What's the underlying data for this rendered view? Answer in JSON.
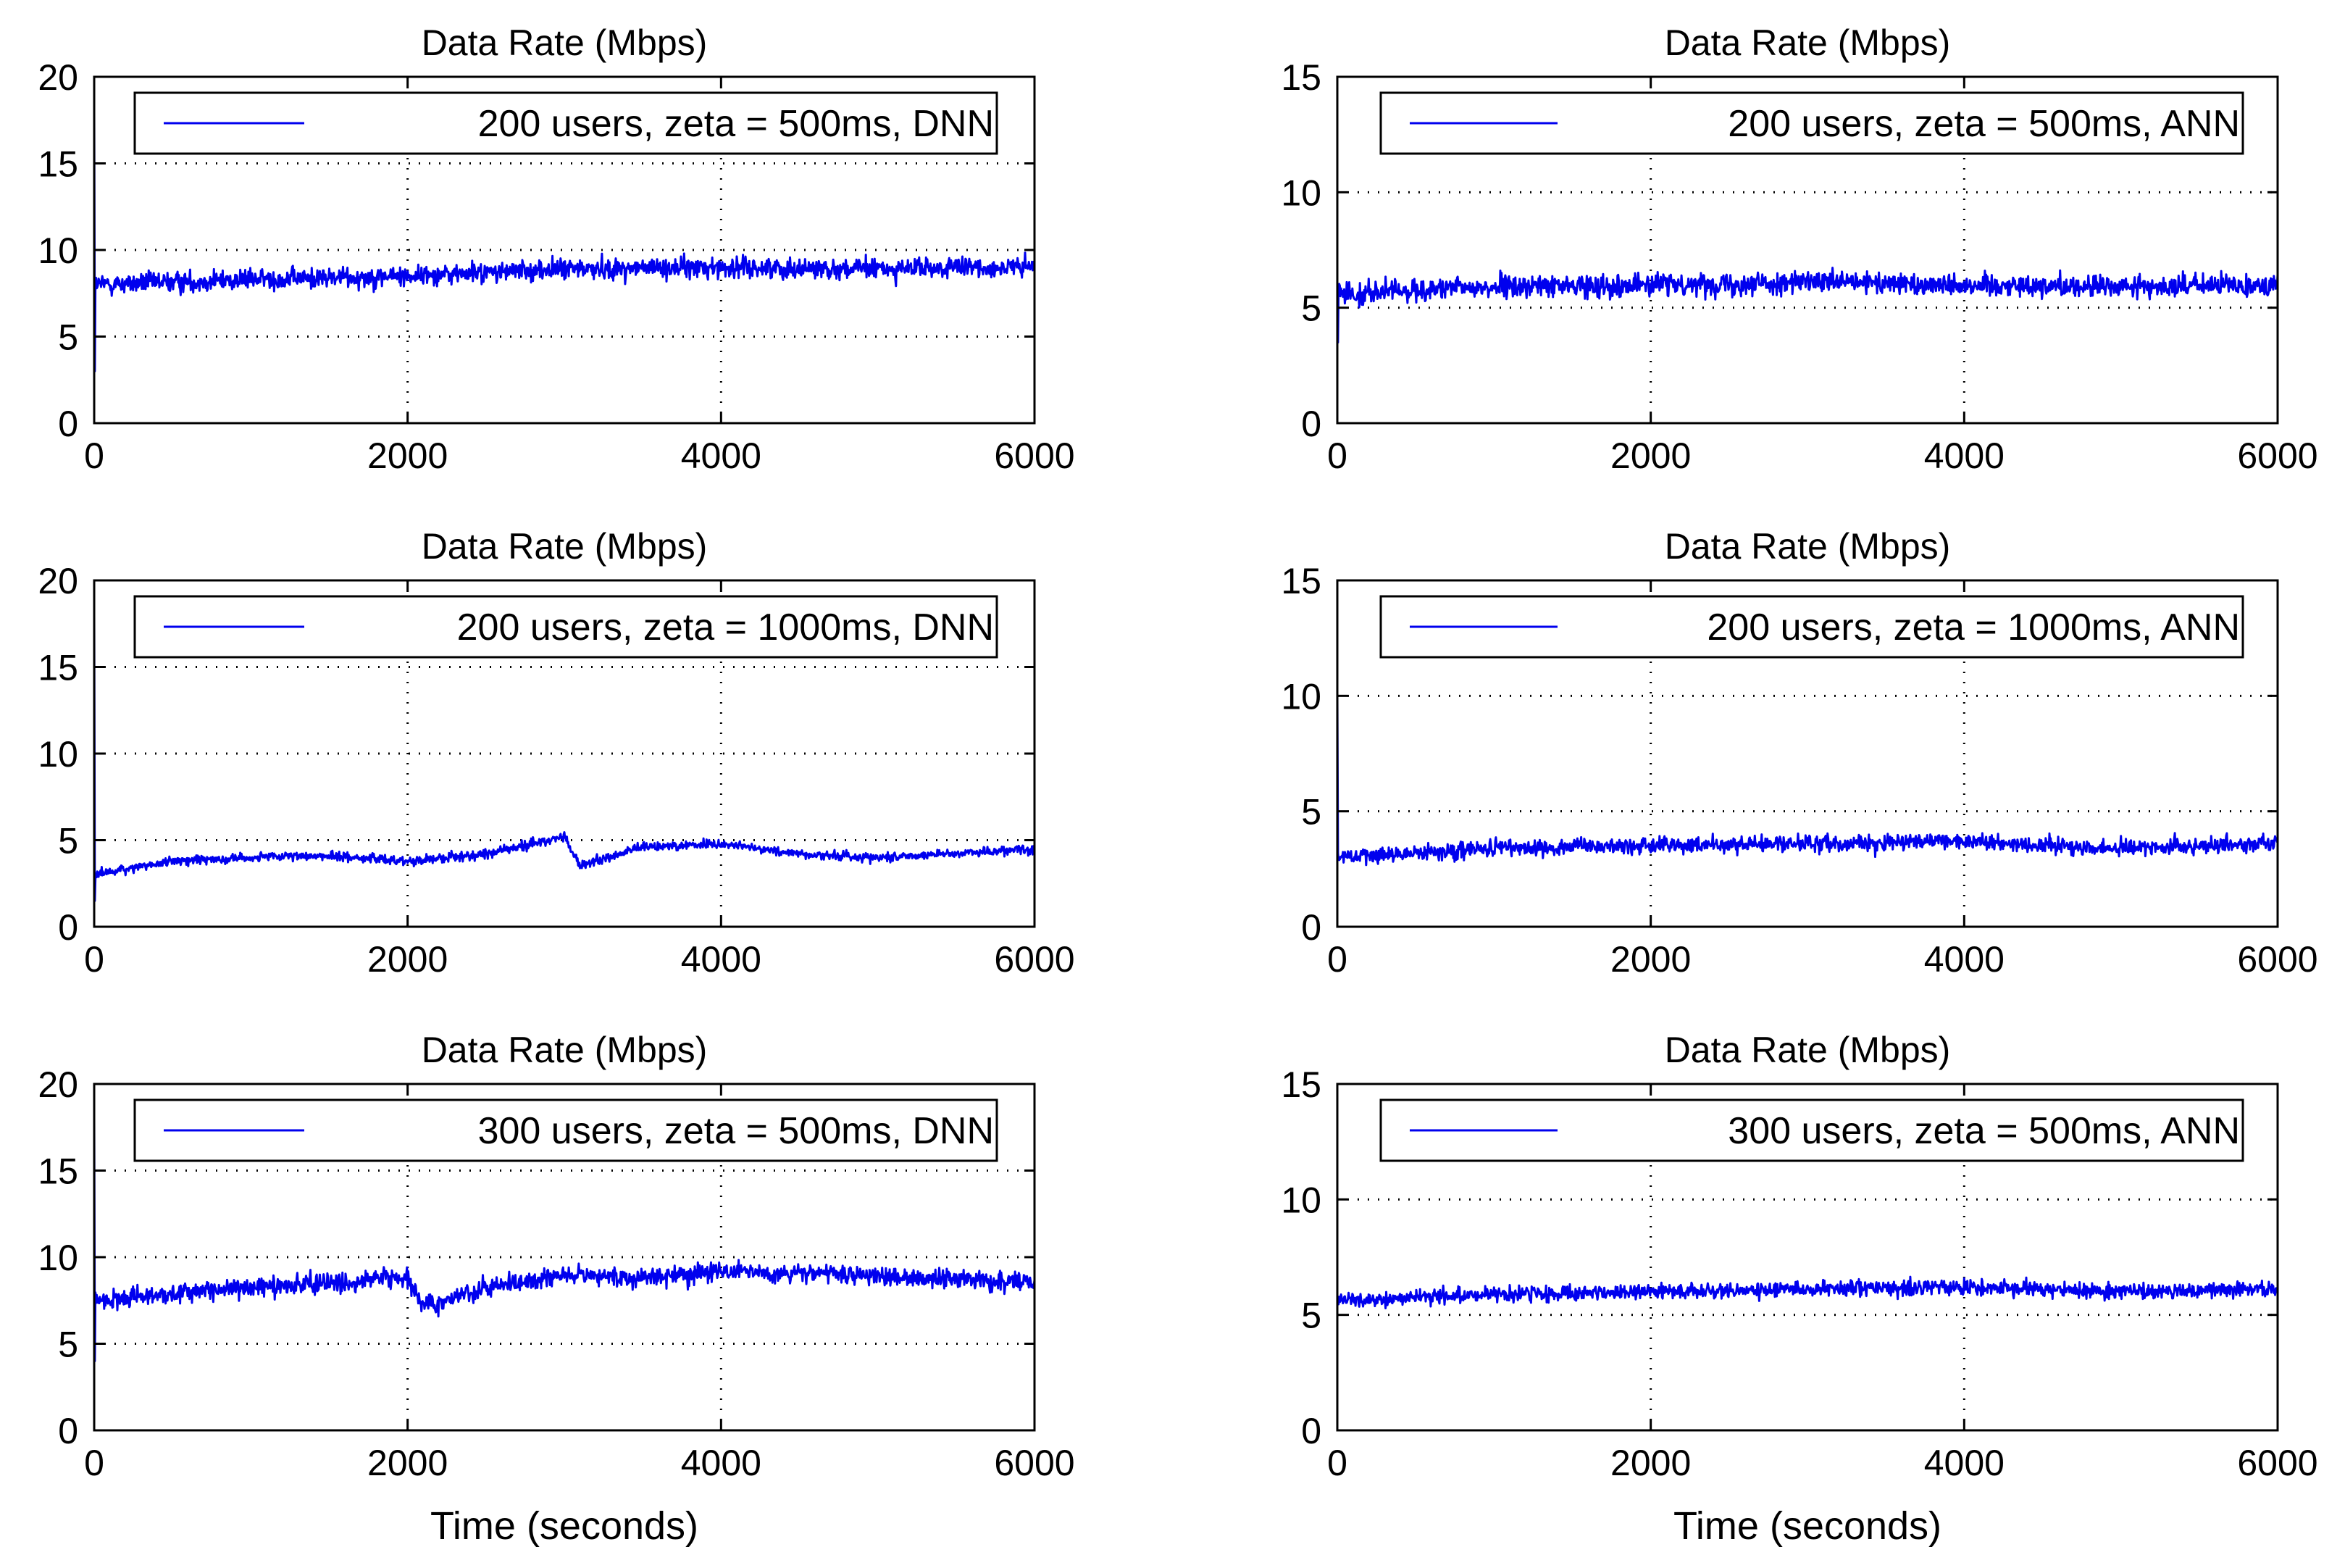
{
  "figure": {
    "panels_per_row": 2,
    "colors": {
      "line": "#0000ee",
      "axes": "#000000",
      "grid": "#000000",
      "background": "#ffffff"
    }
  },
  "chart_data": [
    {
      "type": "line",
      "panel": "row1-left",
      "title": "Data Rate (Mbps)",
      "xlabel": "",
      "xlim": [
        0,
        6000
      ],
      "ylim": [
        0,
        20
      ],
      "xticks": [
        0,
        2000,
        4000,
        6000
      ],
      "yticks": [
        0,
        5,
        10,
        15,
        20
      ],
      "grid": true,
      "legend_position": "top-center",
      "series": [
        {
          "name": "200 users, zeta = 500ms, DNN",
          "mean_level": 8.5,
          "noise_amplitude": 1.0,
          "min": 5.8,
          "max": 11.2,
          "initial_spike": 18,
          "initial_dip": 3,
          "trend_x": [
            0,
            1000,
            2000,
            3000,
            4000,
            5000,
            6000
          ],
          "trend_y": [
            8.0,
            8.3,
            8.5,
            8.9,
            9.0,
            8.9,
            9.0
          ]
        }
      ]
    },
    {
      "type": "line",
      "panel": "row1-right",
      "title": "Data Rate (Mbps)",
      "xlabel": "",
      "xlim": [
        0,
        6000
      ],
      "ylim": [
        0,
        15
      ],
      "xticks": [
        0,
        2000,
        4000,
        6000
      ],
      "yticks": [
        0,
        5,
        10,
        15
      ],
      "grid": true,
      "legend_position": "top-right",
      "series": [
        {
          "name": "200 users, zeta = 500ms, ANN",
          "mean_level": 6.0,
          "noise_amplitude": 0.8,
          "min": 3.4,
          "max": 8.0,
          "initial_dip": 3.5,
          "trend_x": [
            0,
            1000,
            2000,
            3000,
            4000,
            5000,
            6000
          ],
          "trend_y": [
            5.6,
            5.9,
            6.0,
            6.1,
            6.0,
            5.9,
            6.0
          ]
        }
      ]
    },
    {
      "type": "line",
      "panel": "row2-left",
      "title": "Data Rate (Mbps)",
      "xlabel": "",
      "xlim": [
        0,
        6000
      ],
      "ylim": [
        0,
        20
      ],
      "xticks": [
        0,
        2000,
        4000,
        6000
      ],
      "yticks": [
        0,
        5,
        10,
        15,
        20
      ],
      "grid": true,
      "legend_position": "top-center",
      "series": [
        {
          "name": "200 users, zeta = 1000ms, DNN",
          "mean_level": 4.2,
          "noise_amplitude": 0.45,
          "min": 2.0,
          "max": 6.0,
          "initial_spike": 18,
          "initial_dip": 1.5,
          "trend_x": [
            0,
            500,
            1000,
            1500,
            2000,
            2500,
            3000,
            3100,
            3500,
            4000,
            4500,
            5000,
            6000
          ],
          "trend_y": [
            3.0,
            3.8,
            4.0,
            4.1,
            3.8,
            4.2,
            5.2,
            3.5,
            4.6,
            4.8,
            4.2,
            4.0,
            4.5
          ]
        }
      ]
    },
    {
      "type": "line",
      "panel": "row2-right",
      "title": "Data Rate (Mbps)",
      "xlabel": "",
      "xlim": [
        0,
        6000
      ],
      "ylim": [
        0,
        15
      ],
      "xticks": [
        0,
        2000,
        4000,
        6000
      ],
      "yticks": [
        0,
        5,
        10,
        15
      ],
      "grid": true,
      "legend_position": "top-right",
      "series": [
        {
          "name": "200 users, zeta = 1000ms, ANN",
          "mean_level": 3.5,
          "noise_amplitude": 0.6,
          "min": 1.8,
          "max": 5.4,
          "initial_spike": 10,
          "trend_x": [
            0,
            1000,
            2000,
            3000,
            4000,
            5000,
            6000
          ],
          "trend_y": [
            3.0,
            3.4,
            3.5,
            3.6,
            3.7,
            3.4,
            3.6
          ]
        }
      ]
    },
    {
      "type": "line",
      "panel": "row3-left",
      "title": "Data Rate (Mbps)",
      "xlabel": "Time (seconds)",
      "xlim": [
        0,
        6000
      ],
      "ylim": [
        0,
        20
      ],
      "xticks": [
        0,
        2000,
        4000,
        6000
      ],
      "yticks": [
        0,
        5,
        10,
        15,
        20
      ],
      "grid": true,
      "legend_position": "top-center",
      "series": [
        {
          "name": "300 users, zeta = 500ms, DNN",
          "mean_level": 8.5,
          "noise_amplitude": 0.9,
          "min": 6.0,
          "max": 10.8,
          "initial_spike": 18,
          "initial_dip": 4,
          "trend_x": [
            0,
            1000,
            1500,
            2000,
            2100,
            2500,
            3000,
            3500,
            4000,
            5000,
            6000
          ],
          "trend_y": [
            7.5,
            8.3,
            8.5,
            8.8,
            7.2,
            8.2,
            9.0,
            8.8,
            9.2,
            8.9,
            8.5
          ]
        }
      ]
    },
    {
      "type": "line",
      "panel": "row3-right",
      "title": "Data Rate (Mbps)",
      "xlabel": "Time (seconds)",
      "xlim": [
        0,
        6000
      ],
      "ylim": [
        0,
        15
      ],
      "xticks": [
        0,
        2000,
        4000,
        6000
      ],
      "yticks": [
        0,
        5,
        10,
        15
      ],
      "grid": true,
      "legend_position": "top-right",
      "series": [
        {
          "name": "300 users, zeta = 500ms, ANN",
          "mean_level": 6.0,
          "noise_amplitude": 0.55,
          "min": 4.3,
          "max": 8.0,
          "trend_x": [
            0,
            1000,
            2000,
            3000,
            4000,
            5000,
            6000
          ],
          "trend_y": [
            5.6,
            5.9,
            6.0,
            6.1,
            6.2,
            6.0,
            6.1
          ]
        }
      ]
    }
  ]
}
